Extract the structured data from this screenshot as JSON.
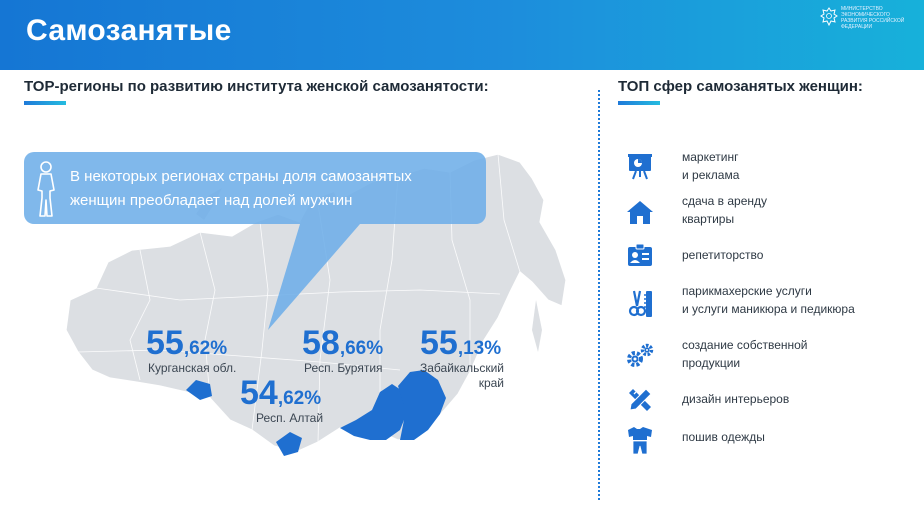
{
  "header": {
    "title": "Самозанятые",
    "ministry": "Министерство экономического развития Российской Федерации"
  },
  "left_section": {
    "title": "ТОР-регионы по развитию института женской самозанятости:"
  },
  "right_section": {
    "title": "ТОП сфер самозанятых женщин:"
  },
  "callout": {
    "text_line1": "В некоторых регионах страны доля самозанятых",
    "text_line2": "женщин преобладает над долей мужчин"
  },
  "regions": [
    {
      "whole": "55",
      "decimal": ",62%",
      "name": "Курганская обл.",
      "name2": ""
    },
    {
      "whole": "58",
      "decimal": ",66%",
      "name": "Респ. Бурятия",
      "name2": ""
    },
    {
      "whole": "55",
      "decimal": ",13%",
      "name": "Забайкальский",
      "name2": "край"
    },
    {
      "whole": "54",
      "decimal": ",62%",
      "name": "Респ. Алтай",
      "name2": ""
    }
  ],
  "spheres": [
    {
      "line1": "маркетинг",
      "line2": "и реклама",
      "icon": "presentation-icon"
    },
    {
      "line1": "сдача в аренду",
      "line2": "квартиры",
      "icon": "house-icon"
    },
    {
      "line1": "репетиторство",
      "line2": "",
      "icon": "id-card-icon"
    },
    {
      "line1": "парикмахерские услуги",
      "line2": "и услуги маникюра и педикюра",
      "icon": "scissors-comb-icon"
    },
    {
      "line1": "создание собственной",
      "line2": "продукции",
      "icon": "gears-icon"
    },
    {
      "line1": "дизайн интерьеров",
      "line2": "",
      "icon": "ruler-pencil-icon"
    },
    {
      "line1": "пошив одежды",
      "line2": "",
      "icon": "clothing-icon"
    }
  ],
  "colors": {
    "header_start": "#1576d4",
    "header_end": "#17b1da",
    "accent_blue": "#1f6fd0",
    "map_grey": "#dcdfe3",
    "region_highlight": "#1f6fd0",
    "callout_bg": "#6eaee8"
  }
}
